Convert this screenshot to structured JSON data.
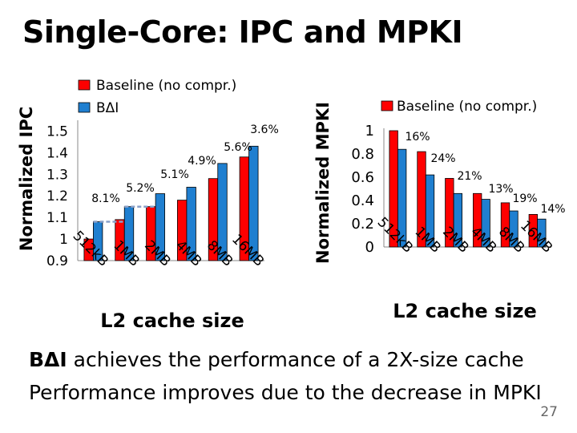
{
  "slide": {
    "title": "Single-Core: IPC and MPKI",
    "caption_line1_bold": "BΔI",
    "caption_line1_rest": " achieves the performance of a 2X-size cache",
    "caption_line2": "Performance improves due to the decrease in MPKI",
    "page_number": "27"
  },
  "colors": {
    "baseline": "#ff0000",
    "bdi": "#1f7fd0",
    "edge": "#000000",
    "dashed_line": "#8aa0c8"
  },
  "chart_data": [
    {
      "type": "bar",
      "categories": [
        "512kB",
        "1MB",
        "2MB",
        "4MB",
        "8MB",
        "16MB"
      ],
      "ylabel": "Normalized IPC",
      "xlabel": "L2 cache size",
      "ylim": [
        0.9,
        1.55
      ],
      "yticks": [
        "0.9",
        "1",
        "1.1",
        "1.2",
        "1.3",
        "1.4",
        "1.5"
      ],
      "series": [
        {
          "name": "Baseline (no compr.)",
          "values": [
            1.0,
            1.09,
            1.15,
            1.18,
            1.28,
            1.38
          ]
        },
        {
          "name": "BΔI",
          "values": [
            1.08,
            1.15,
            1.21,
            1.24,
            1.35,
            1.43
          ]
        }
      ],
      "annotations": [
        "8.1%",
        "5.2%",
        "5.1%",
        "4.9%",
        "5.6%",
        "3.6%"
      ],
      "legend": "top-left",
      "grid": false
    },
    {
      "type": "bar",
      "categories": [
        "512kB",
        "1MB",
        "2MB",
        "4MB",
        "8MB",
        "16MB"
      ],
      "ylabel": "Normalized MPKI",
      "xlabel": "L2 cache size",
      "ylim": [
        0,
        1.0
      ],
      "yticks": [
        "0",
        "0.2",
        "0.4",
        "0.6",
        "0.8",
        "1"
      ],
      "series": [
        {
          "name": "Baseline (no compr.)",
          "values": [
            1.0,
            0.82,
            0.59,
            0.46,
            0.38,
            0.28
          ]
        },
        {
          "name": "BΔI",
          "values": [
            0.84,
            0.62,
            0.46,
            0.41,
            0.31,
            0.24
          ]
        }
      ],
      "annotations": [
        "16%",
        "24%",
        "21%",
        "13%",
        "19%",
        "14%"
      ],
      "legend": "top",
      "grid": false
    }
  ]
}
